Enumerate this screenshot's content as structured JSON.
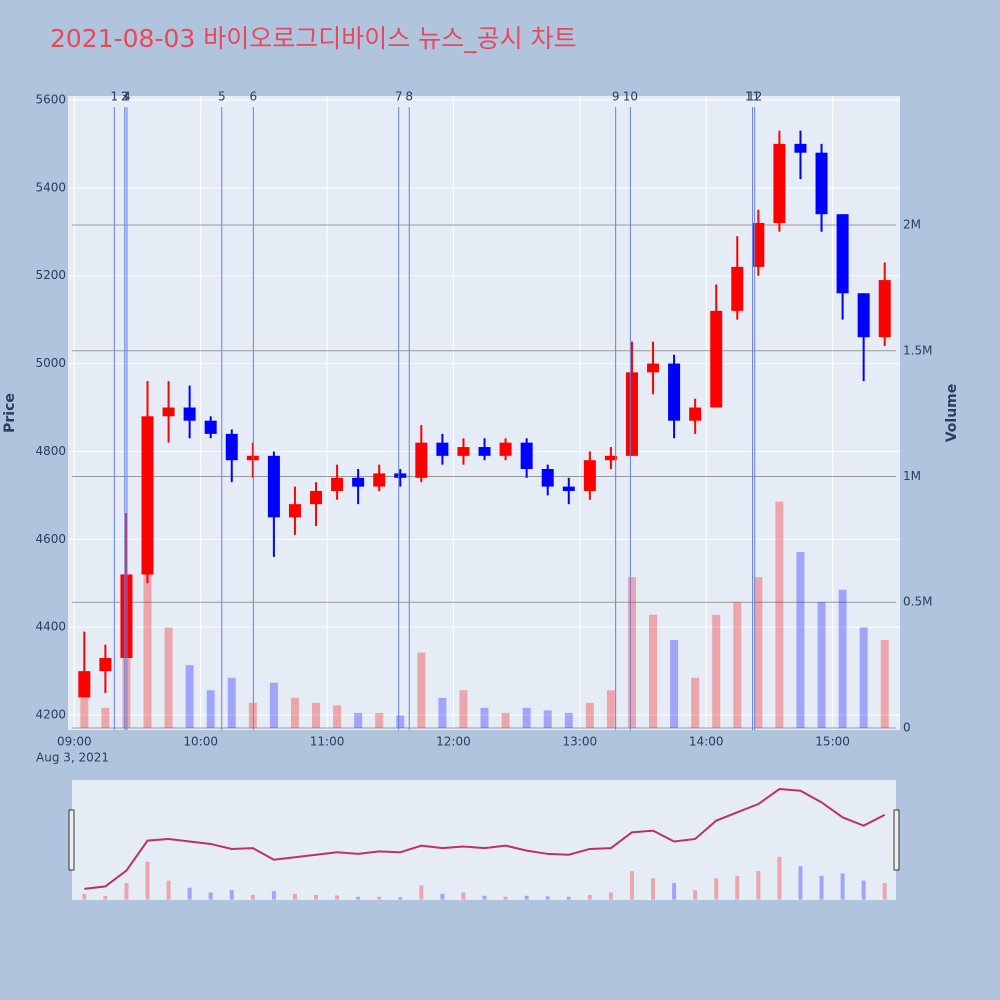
{
  "chart_data": {
    "type": "candlestick",
    "title": "2021-08-03 바이오로그디바이스 뉴스_공시 차트",
    "y_title": "Price",
    "y2_title": "Volume",
    "x_date_label": "Aug 3, 2021",
    "up_color": "#ff0000",
    "down_color": "#0000ff",
    "x": [
      "09:00",
      "09:10",
      "09:20",
      "09:30",
      "09:40",
      "09:50",
      "10:00",
      "10:10",
      "10:20",
      "10:30",
      "10:40",
      "10:50",
      "11:00",
      "11:10",
      "11:20",
      "11:30",
      "11:40",
      "11:50",
      "12:00",
      "12:10",
      "12:20",
      "12:30",
      "12:40",
      "12:50",
      "13:00",
      "13:10",
      "13:20",
      "13:30",
      "13:40",
      "13:50",
      "14:00",
      "14:10",
      "14:20",
      "14:30",
      "14:40",
      "14:50",
      "15:00",
      "15:10",
      "15:20"
    ],
    "open": [
      4240,
      4300,
      4330,
      4520,
      4880,
      4900,
      4870,
      4840,
      4780,
      4790,
      4650,
      4680,
      4710,
      4740,
      4720,
      4750,
      4740,
      4820,
      4790,
      4810,
      4790,
      4820,
      4760,
      4720,
      4710,
      4780,
      4790,
      4980,
      5000,
      4870,
      4900,
      5120,
      5220,
      5320,
      5500,
      5480,
      5340,
      5160,
      5060
    ],
    "high": [
      4390,
      4360,
      4660,
      4960,
      4960,
      4950,
      4880,
      4850,
      4820,
      4800,
      4720,
      4730,
      4770,
      4760,
      4770,
      4760,
      4860,
      4840,
      4830,
      4830,
      4830,
      4830,
      4770,
      4740,
      4800,
      4810,
      5050,
      5050,
      5020,
      4920,
      5180,
      5290,
      5350,
      5530,
      5530,
      5500,
      5340,
      5160,
      5230
    ],
    "low": [
      4240,
      4250,
      4330,
      4500,
      4820,
      4830,
      4830,
      4730,
      4740,
      4560,
      4610,
      4630,
      4690,
      4680,
      4710,
      4720,
      4730,
      4770,
      4770,
      4780,
      4780,
      4740,
      4700,
      4680,
      4690,
      4760,
      4790,
      4930,
      4830,
      4840,
      4900,
      5100,
      5200,
      5300,
      5420,
      5300,
      5100,
      4960,
      5040
    ],
    "close": [
      4300,
      4330,
      4520,
      4880,
      4900,
      4870,
      4840,
      4780,
      4790,
      4650,
      4680,
      4710,
      4740,
      4720,
      4750,
      4740,
      4820,
      4790,
      4810,
      4790,
      4820,
      4760,
      4720,
      4710,
      4780,
      4790,
      4980,
      5000,
      4870,
      4900,
      5120,
      5220,
      5320,
      5500,
      5480,
      5340,
      5160,
      5060,
      5190
    ],
    "volume": {
      "name": "Volume",
      "axis": "y2",
      "values": [
        120000,
        80000,
        350000,
        800000,
        400000,
        250000,
        150000,
        200000,
        100000,
        180000,
        120000,
        100000,
        90000,
        60000,
        60000,
        50000,
        300000,
        120000,
        150000,
        80000,
        60000,
        80000,
        70000,
        60000,
        100000,
        150000,
        600000,
        450000,
        350000,
        200000,
        450000,
        500000,
        600000,
        900000,
        700000,
        500000,
        550000,
        400000,
        350000
      ]
    },
    "xlim": [
      "08:57",
      "15:32"
    ],
    "xticks": [
      "09:00",
      "10:00",
      "11:00",
      "12:00",
      "13:00",
      "14:00",
      "15:00"
    ],
    "ylim": [
      4166,
      5609
    ],
    "yticks": [
      4200,
      4400,
      4600,
      4800,
      5000,
      5200,
      5400,
      5600
    ],
    "y2lim": [
      -8000,
      2513000
    ],
    "y2ticks": [
      {
        "value": 0,
        "label": "0"
      },
      {
        "value": 500000,
        "label": "0.5M"
      },
      {
        "value": 1000000,
        "label": "1M"
      },
      {
        "value": 1500000,
        "label": "1.5M"
      },
      {
        "value": 2000000,
        "label": "2M"
      }
    ],
    "annotations": [
      {
        "x": "09:19",
        "label": "1"
      },
      {
        "x": "09:24",
        "label": "2"
      },
      {
        "x": "09:24",
        "label": "3"
      },
      {
        "x": "09:25",
        "label": "4"
      },
      {
        "x": "10:10",
        "label": "5"
      },
      {
        "x": "10:25",
        "label": "6"
      },
      {
        "x": "11:34",
        "label": "7"
      },
      {
        "x": "11:39",
        "label": "8"
      },
      {
        "x": "13:17",
        "label": "9"
      },
      {
        "x": "13:24",
        "label": "10"
      },
      {
        "x": "14:22",
        "label": "11"
      },
      {
        "x": "14:23",
        "label": "12"
      }
    ]
  }
}
